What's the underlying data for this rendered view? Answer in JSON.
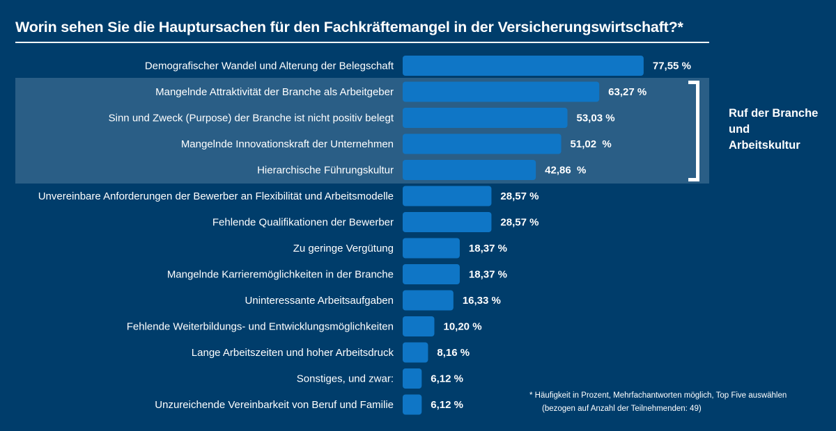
{
  "title": "Worin sehen Sie die Hauptursachen für den Fachkräftemangel in der Versicherungswirtschaft?*",
  "group": {
    "label_lines": [
      "Ruf der Branche",
      "und",
      "Arbeitskultur"
    ]
  },
  "footnote": {
    "line1": "* Häufigkeit in Prozent, Mehrfachantworten möglich, Top Five auswählen",
    "line2": "(bezogen auf Anzahl der Teilnehmenden: 49)"
  },
  "colors": {
    "background": "#003d6b",
    "highlight": "#2a5e86",
    "bar": "#0f76c6",
    "text": "#ffffff"
  },
  "chart_data": {
    "type": "bar",
    "orientation": "horizontal",
    "title": "Worin sehen Sie die Hauptursachen für den Fachkräftemangel in der Versicherungswirtschaft?*",
    "xlabel": "",
    "ylabel": "",
    "xlim": [
      0,
      100
    ],
    "grid": false,
    "categories": [
      "Demografischer Wandel und Alterung der Belegschaft",
      "Mangelnde Attraktivität der Branche als Arbeitgeber",
      "Sinn und Zweck (Purpose) der Branche ist nicht positiv belegt",
      "Mangelnde Innovationskraft der Unternehmen",
      "Hierarchische Führungskultur",
      "Unvereinbare Anforderungen der Bewerber an Flexibilität und Arbeitsmodelle",
      "Fehlende Qualifikationen der Bewerber",
      "Zu geringe Vergütung",
      "Mangelnde Karrieremöglichkeiten in der Branche",
      "Uninteressante Arbeitsaufgaben",
      "Fehlende Weiterbildungs- und Entwicklungsmöglichkeiten",
      "Lange Arbeitszeiten und hoher Arbeitsdruck",
      "Sonstiges, und zwar:",
      "Unzureichende Vereinbarkeit von Beruf und Familie"
    ],
    "values": [
      77.55,
      63.27,
      53.03,
      51.02,
      42.86,
      28.57,
      28.57,
      18.37,
      18.37,
      16.33,
      10.2,
      8.16,
      6.12,
      6.12
    ],
    "value_labels": [
      "77,55 %",
      "63,27 %",
      "53,03 %",
      "51,02  %",
      "42,86  %",
      "28,57 %",
      "28,57 %",
      "18,37 %",
      "18,37 %",
      "16,33 %",
      "10,20 %",
      "8,16 %",
      "6,12 %",
      "6,12 %"
    ],
    "highlighted_group": {
      "label": "Ruf der Branche und Arbeitskultur",
      "indices": [
        1,
        2,
        3,
        4
      ]
    }
  }
}
